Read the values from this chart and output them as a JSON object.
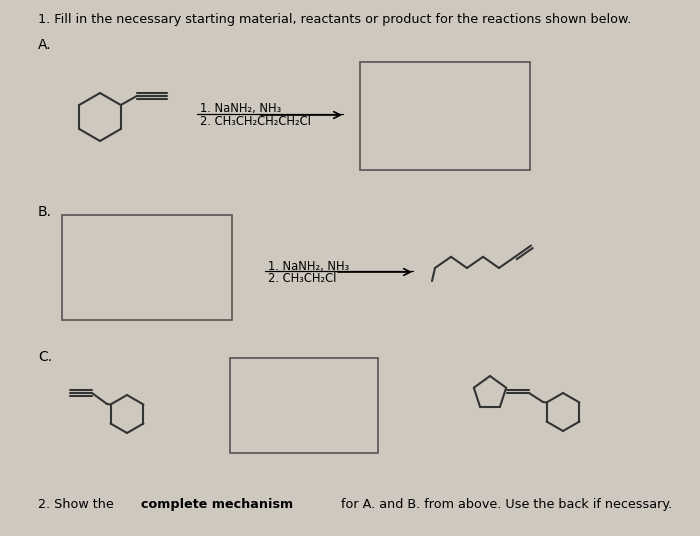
{
  "bg_color": "#cec8bf",
  "title": "1. Fill in the necessary starting material, reactants or product for the reactions shown below.",
  "rxn_A_line1": "1. NaNH₂, NH₃",
  "rxn_A_line2": "2. CH₃CH₂CH₂CH₂Cl",
  "rxn_B_line1": "1. NaNH₂, NH₃",
  "rxn_B_line2": "2. CH₃CH₂Cl",
  "note2_start": "2. Show the ",
  "note2_bold": "complete mechanism",
  "note2_end": " for A. and B. from above. Use the back if necessary."
}
